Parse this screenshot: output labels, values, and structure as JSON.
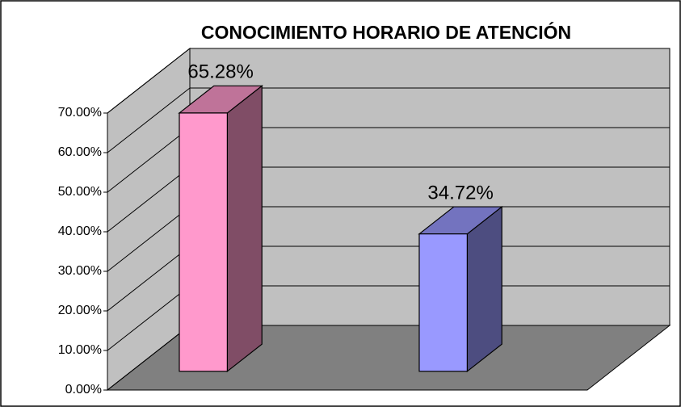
{
  "chart_data": {
    "type": "bar3d",
    "title": "CONOCIMIENTO HORARIO DE ATENCIÓN",
    "categories": [
      null,
      null
    ],
    "values": [
      65.28,
      34.72
    ],
    "value_labels": [
      "65.28%",
      "34.72%"
    ],
    "colors": [
      "#ff99cc",
      "#9999ff"
    ],
    "ylim": [
      0,
      70
    ],
    "yticks": [
      {
        "value": 0,
        "label": "0.00%"
      },
      {
        "value": 10,
        "label": "10.00%"
      },
      {
        "value": 20,
        "label": "20.00%"
      },
      {
        "value": 30,
        "label": "30.00%"
      },
      {
        "value": 40,
        "label": "40.00%"
      },
      {
        "value": 50,
        "label": "50.00%"
      },
      {
        "value": 60,
        "label": "60.00%"
      },
      {
        "value": 70,
        "label": "70.00%"
      }
    ],
    "grid": true
  }
}
